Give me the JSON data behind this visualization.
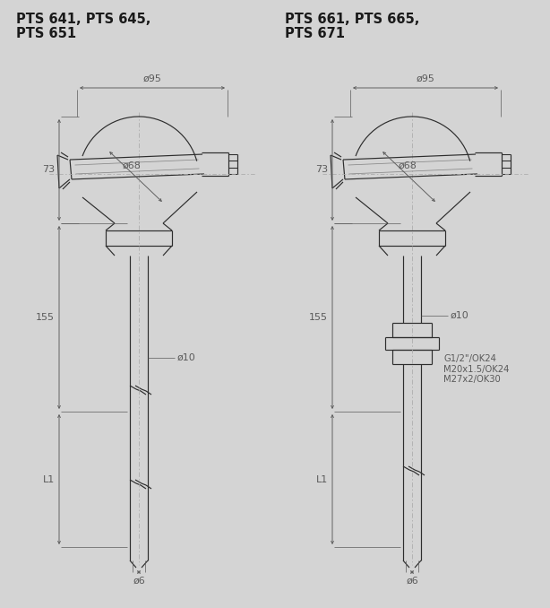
{
  "bg_color": "#d4d4d4",
  "line_color": "#2d2d2d",
  "dim_color": "#5a5a5a",
  "title_left_l1": "PTS 641, PTS 645,",
  "title_left_l2": "PTS 651",
  "title_right_l1": "PTS 661, PTS 665,",
  "title_right_l2": "PTS 671",
  "label_d95": "ø95",
  "label_d68": "ø68",
  "label_d10": "ø10",
  "label_d6": "ø6",
  "label_73": "73",
  "label_155": "155",
  "label_L1": "L1",
  "note_right": "G1/2\"/OK24\nM20x1.5/OK24\nM27x2/OK30",
  "dim_fs": 8.0,
  "title_fs": 10.5,
  "note_fs": 7.2,
  "lw": 0.85,
  "tlw": 0.55,
  "dlw": 0.65
}
